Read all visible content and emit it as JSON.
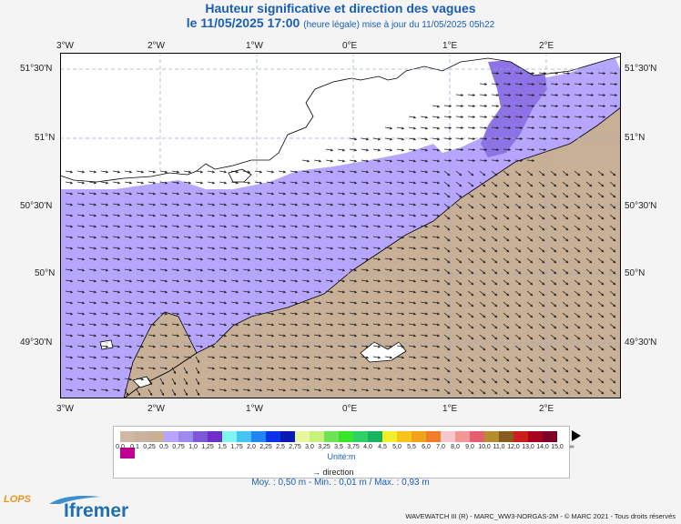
{
  "header": {
    "title": "Hauteur significative et direction des vagues",
    "date": "le 11/05/2025 17:00",
    "subtitle": "(heure légale) mise à jour du 11/05/2025 05h22"
  },
  "map": {
    "lon_labels": [
      "3°W",
      "2°W",
      "1°W",
      "0°E",
      "1°E",
      "2°E"
    ],
    "lat_labels": [
      "51°30'N",
      "51°N",
      "50°30'N",
      "50°N",
      "49°30'N"
    ],
    "colors": {
      "land": "#c8b097",
      "low": "#b7a6ff",
      "mid": "#8e73e6",
      "sea": "#ffffff",
      "border": "#000000"
    }
  },
  "legend": {
    "values": [
      "0,0",
      "0,1",
      "0,25",
      "0,5",
      "0,75",
      "1,0",
      "1,25",
      "1,5",
      "1,75",
      "2,0",
      "2,25",
      "2,5",
      "2,75",
      "3,0",
      "3,25",
      "3,5",
      "3,75",
      "4,0",
      "4,5",
      "5,0",
      "5,5",
      "6,0",
      "7,0",
      "8,0",
      "9,0",
      "10,0",
      "11,0",
      "12,0",
      "13,0",
      "14,0",
      "15,0",
      "∞"
    ],
    "colors": [
      "#cdb9a4",
      "#c9b3a0",
      "#c8b097",
      "#b7a6ff",
      "#9d8aef",
      "#7c58d6",
      "#6d2fc7",
      "#7ef7f0",
      "#45c4f2",
      "#1e86ef",
      "#0a35e6",
      "#0a1ab1",
      "#e8f69d",
      "#c8f07a",
      "#6de553",
      "#36e62a",
      "#2ed06a",
      "#1ab35d",
      "#f5ee2c",
      "#f5c41a",
      "#f4a21a",
      "#f27b2b",
      "#f7c8c8",
      "#f29696",
      "#e85c70",
      "#b58c2e",
      "#8a5a1d",
      "#cc1d1d",
      "#a8001f",
      "#7f0025",
      "#c00090"
    ],
    "unit": "Unité:m",
    "direction_label": "direction"
  },
  "stats": "Moy. : 0,50 m   -   Min. : 0,01 m / Max. : 0,93 m",
  "credit": "WAVEWATCH III (R) - MARC_WW3-NORGAS-2M - © MARC 2021 - Tous droits réservés",
  "logos": {
    "lops": "LOPS",
    "ifremer": "Ifremer"
  }
}
